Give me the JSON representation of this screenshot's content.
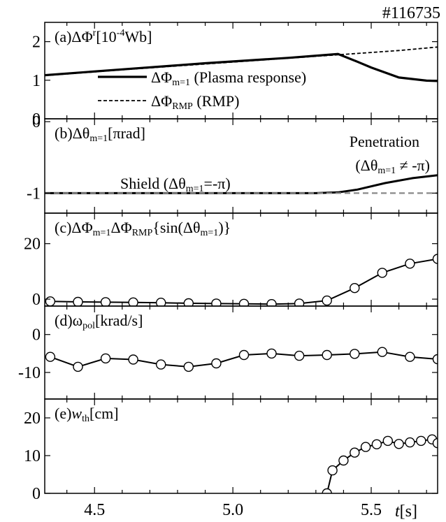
{
  "shot_label": "#116735",
  "chart_data": [
    {
      "panel": "a",
      "type": "line",
      "label": {
        "prefix": "(a)ΔΦ",
        "sup": "r",
        "mid": "[10",
        "sup2": "-4",
        "suffix": "Wb]"
      },
      "xlim": [
        4.32,
        5.74
      ],
      "ylim": [
        0,
        2.5
      ],
      "yticks": [
        0,
        1,
        2
      ],
      "series": [
        {
          "name": "ΔΦm=1 (Plasma response)",
          "style": "solid",
          "x": [
            4.32,
            4.6,
            4.9,
            5.2,
            5.38,
            5.45,
            5.5,
            5.6,
            5.7,
            5.74
          ],
          "y": [
            1.13,
            1.28,
            1.44,
            1.58,
            1.68,
            1.48,
            1.33,
            1.07,
            0.99,
            0.98
          ]
        },
        {
          "name": "ΔΦRMP (RMP)",
          "style": "dashed",
          "x": [
            4.32,
            4.6,
            4.9,
            5.2,
            5.38,
            5.5,
            5.6,
            5.74
          ],
          "y": [
            1.12,
            1.27,
            1.42,
            1.57,
            1.66,
            1.72,
            1.77,
            1.86
          ]
        }
      ],
      "legend": [
        {
          "label": "ΔΦ",
          "sub": "m=1",
          "rest": " (Plasma response)",
          "style": "solid"
        },
        {
          "label": "ΔΦ",
          "sub": "RMP",
          "rest": " (RMP)",
          "style": "dashed"
        }
      ]
    },
    {
      "panel": "b",
      "type": "line",
      "label": {
        "prefix": "(b)Δθ",
        "sub": "m=1",
        "suffix": "[πrad]"
      },
      "xlim": [
        4.32,
        5.74
      ],
      "ylim": [
        -1.28,
        0.04
      ],
      "yticks": [
        0,
        -1
      ],
      "series": [
        {
          "name": "Δθm=1",
          "style": "solid",
          "x": [
            4.32,
            5.0,
            5.3,
            5.38,
            5.45,
            5.55,
            5.65,
            5.74
          ],
          "y": [
            -1.0,
            -1.0,
            -1.0,
            -0.99,
            -0.95,
            -0.86,
            -0.79,
            -0.75
          ]
        },
        {
          "name": "-π reference",
          "style": "dashed-gray",
          "x": [
            4.32,
            5.74
          ],
          "y": [
            -1.0,
            -1.0
          ]
        }
      ],
      "annotations": [
        {
          "id": "shield",
          "pre": "Shield (Δθ",
          "sub": "m=1",
          "post": "=-π)"
        },
        {
          "id": "penetration",
          "text": "Penetration"
        },
        {
          "id": "penetration-cond",
          "pre": "(Δθ",
          "sub": "m=1",
          "post": " ≠ -π)"
        }
      ]
    },
    {
      "panel": "c",
      "type": "line",
      "label": {
        "prefix": "(c)ΔΦ",
        "sub": "m=1",
        "mid": "ΔΦ",
        "sub2": "RMP",
        "suffix": "{sin(Δθ",
        "sub3": "m=1",
        "suffix2": ")}"
      },
      "xlim": [
        4.32,
        5.74
      ],
      "ylim": [
        -2.5,
        31
      ],
      "yticks": [
        0,
        20
      ],
      "series": [
        {
          "name": "c",
          "markers": "open-circle",
          "x": [
            4.34,
            4.44,
            4.54,
            4.64,
            4.74,
            4.84,
            4.94,
            5.04,
            5.14,
            5.24,
            5.34,
            5.44,
            5.54,
            5.64,
            5.74
          ],
          "y": [
            -0.8,
            -1.0,
            -1.1,
            -1.2,
            -1.3,
            -1.5,
            -1.6,
            -1.7,
            -1.8,
            -1.6,
            -0.5,
            4.0,
            9.5,
            12.8,
            14.5
          ]
        }
      ]
    },
    {
      "panel": "d",
      "type": "line",
      "label": {
        "prefix": "(d)ω",
        "sub": "pol",
        "suffix": "[krad/s]"
      },
      "xlim": [
        4.32,
        5.74
      ],
      "ylim": [
        -17,
        7.5
      ],
      "yticks": [
        0,
        -10
      ],
      "series": [
        {
          "name": "d",
          "markers": "open-circle",
          "x": [
            4.34,
            4.44,
            4.54,
            4.64,
            4.74,
            4.84,
            4.94,
            5.04,
            5.14,
            5.24,
            5.34,
            5.44,
            5.54,
            5.64,
            5.74
          ],
          "y": [
            -5.9,
            -8.5,
            -6.3,
            -6.6,
            -7.9,
            -8.5,
            -7.6,
            -5.4,
            -5.0,
            -5.6,
            -5.4,
            -5.1,
            -4.6,
            -5.9,
            -6.5
          ]
        }
      ]
    },
    {
      "panel": "e",
      "type": "line",
      "label": {
        "prefix": "(e)",
        "italic": "w",
        "sub": "th",
        "suffix": "[cm]"
      },
      "xlim": [
        4.32,
        5.74
      ],
      "ylim": [
        0,
        25
      ],
      "yticks": [
        0,
        10,
        20
      ],
      "xticks": [
        4.5,
        5.0,
        5.5
      ],
      "xtick_labels": [
        "4.5",
        "5.0",
        "5.5"
      ],
      "xlabel": {
        "italic": "t",
        "rest": "[s]"
      },
      "series": [
        {
          "name": "e",
          "markers": "open-circle",
          "x": [
            5.34,
            5.36,
            5.4,
            5.44,
            5.48,
            5.52,
            5.56,
            5.6,
            5.64,
            5.68,
            5.72,
            5.74
          ],
          "y": [
            0.0,
            6.1,
            8.7,
            10.8,
            12.3,
            13.0,
            13.9,
            13.1,
            13.5,
            13.9,
            14.3,
            13.3
          ]
        }
      ]
    }
  ]
}
